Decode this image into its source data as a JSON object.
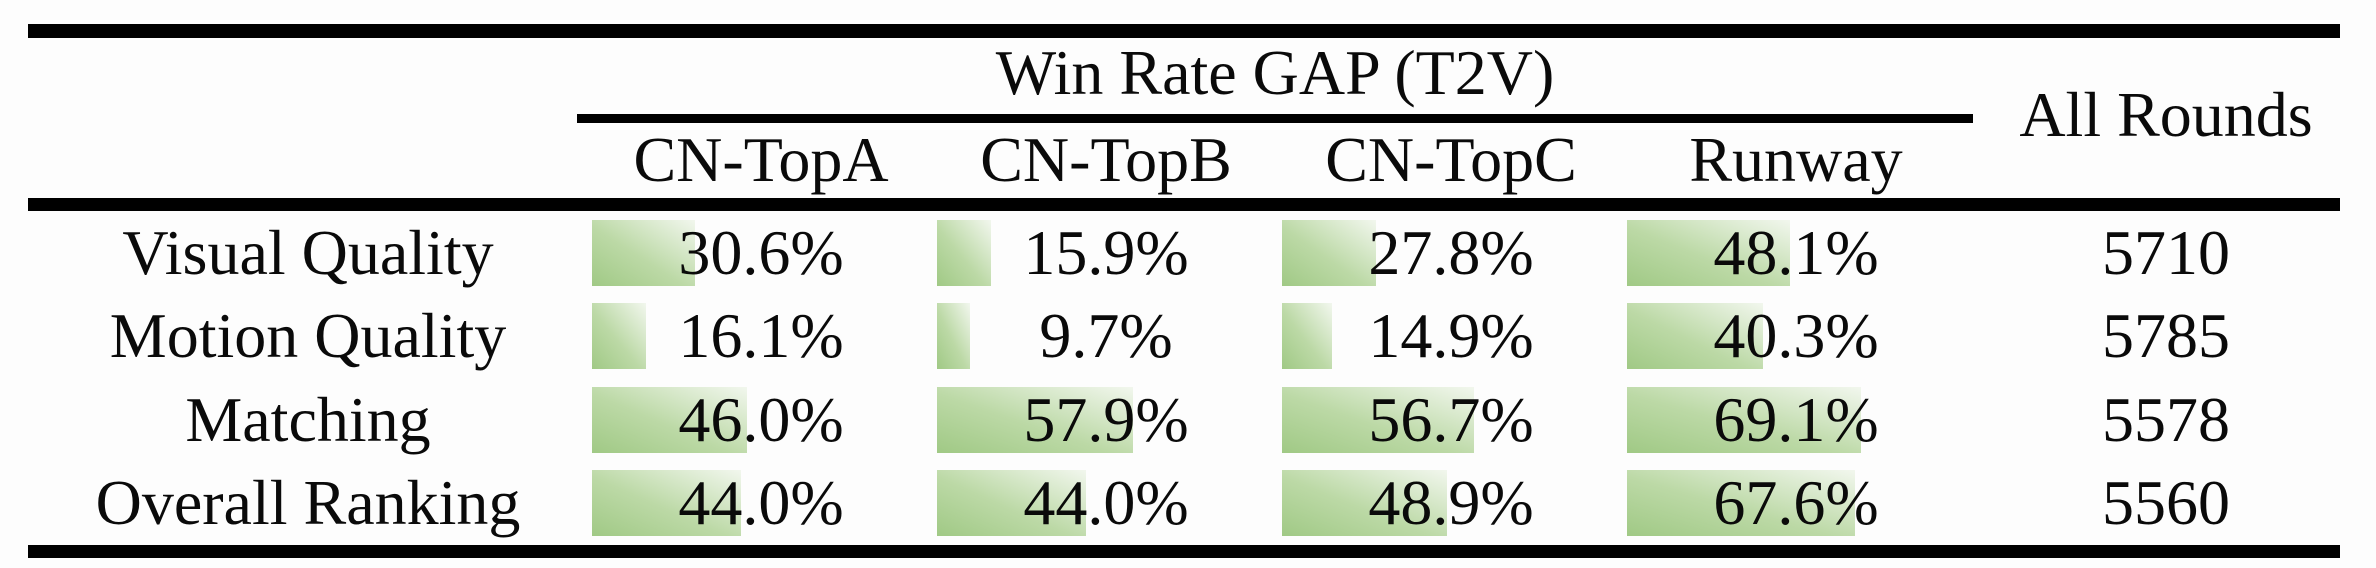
{
  "colors": {
    "bg": "#fdfdfd",
    "text": "#0a0a0a",
    "rule": "#000000",
    "bar_start": "#a0c985",
    "bar_mid": "#bcd9a6",
    "bar_end": "#f2f7ee"
  },
  "table": {
    "group_header": "Win Rate GAP (T2V)",
    "all_rounds_header": "All Rounds",
    "columns": [
      "CN-TopA",
      "CN-TopB",
      "CN-TopC",
      "Runway"
    ],
    "rows": [
      {
        "label": "Visual Quality",
        "cells": [
          {
            "text": "30.6%",
            "pct": 30.6
          },
          {
            "text": "15.9%",
            "pct": 15.9
          },
          {
            "text": "27.8%",
            "pct": 27.8
          },
          {
            "text": "48.1%",
            "pct": 48.1
          }
        ],
        "all_rounds": "5710"
      },
      {
        "label": "Motion Quality",
        "cells": [
          {
            "text": "16.1%",
            "pct": 16.1
          },
          {
            "text": "9.7%",
            "pct": 9.7
          },
          {
            "text": "14.9%",
            "pct": 14.9
          },
          {
            "text": "40.3%",
            "pct": 40.3
          }
        ],
        "all_rounds": "5785"
      },
      {
        "label": "Matching",
        "cells": [
          {
            "text": "46.0%",
            "pct": 46.0
          },
          {
            "text": "57.9%",
            "pct": 57.9
          },
          {
            "text": "56.7%",
            "pct": 56.7
          },
          {
            "text": "69.1%",
            "pct": 69.1
          }
        ],
        "all_rounds": "5578"
      },
      {
        "label": "Overall Ranking",
        "cells": [
          {
            "text": "44.0%",
            "pct": 44.0
          },
          {
            "text": "44.0%",
            "pct": 44.0
          },
          {
            "text": "48.9%",
            "pct": 48.9
          },
          {
            "text": "67.6%",
            "pct": 67.6
          }
        ],
        "all_rounds": "5560"
      }
    ]
  }
}
